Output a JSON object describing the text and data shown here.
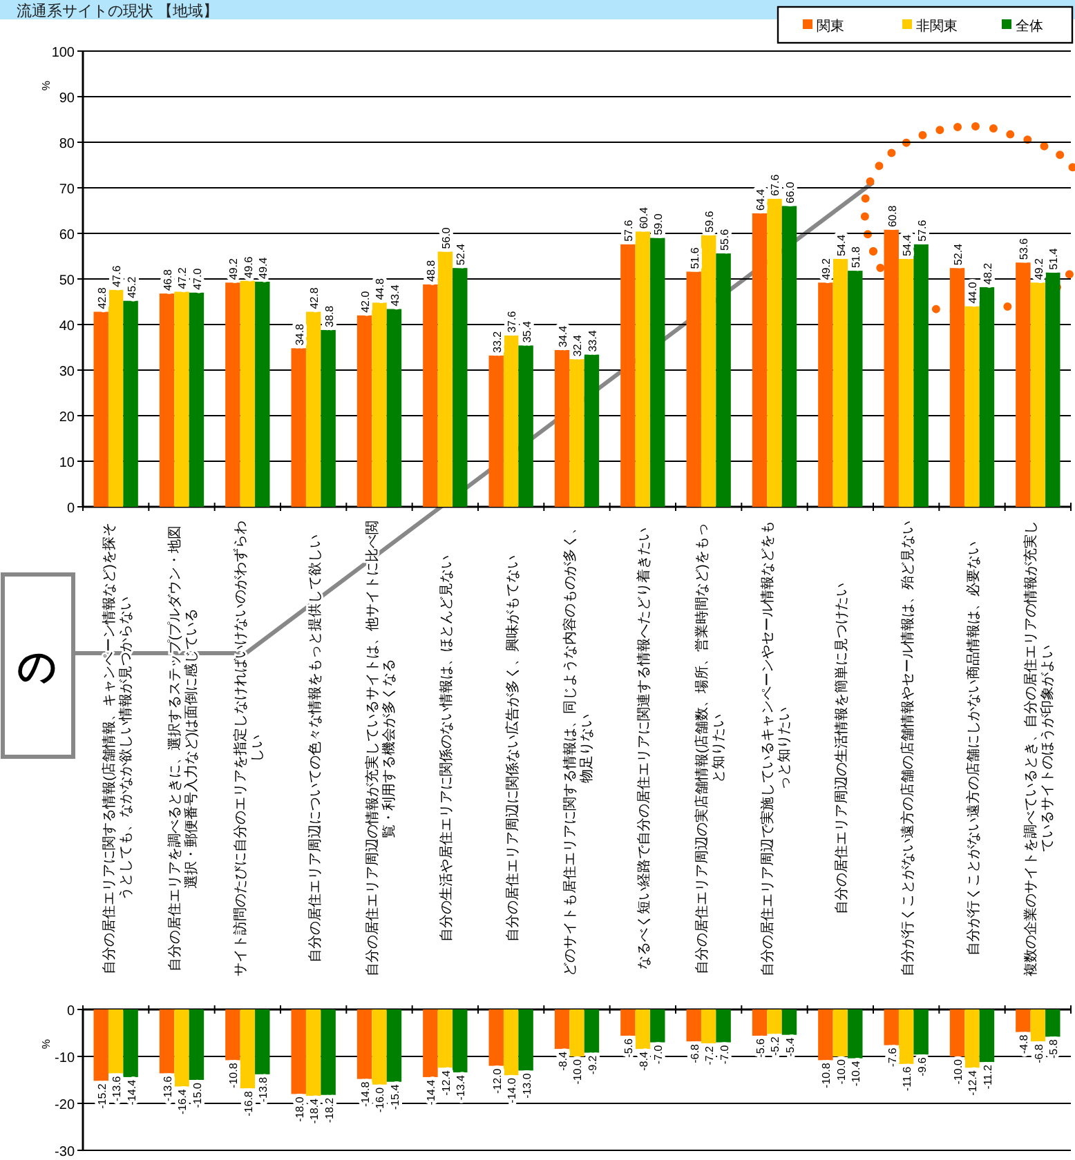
{
  "chart_data": [
    {
      "type": "bar",
      "title": "流通系サイトの現状 【地域】",
      "ylabel": "%",
      "ylim": [
        0,
        100
      ],
      "yticks": [
        0,
        10,
        20,
        30,
        40,
        50,
        60,
        70,
        80,
        90,
        100
      ],
      "grid": "y",
      "legend": "top right",
      "categories": [
        "自分の居住エリアに関する情報(店舗情報、キャンペーン情報など)を探そうとしても、なかなか欲しい情報が見つからない",
        "自分の居住エリアを調べるときに、選択するステップ(プルダウン・地図選択・郵便番号入力など)は面倒に感じている",
        "サイト訪問のたびに自分のエリアを指定しなければいけないのがわずらわしい",
        "自分の居住エリア周辺についての色々な情報をもっと提供して欲しい",
        "自分の居住エリア周辺の情報が充実しているサイトは、他サイトに比べ閲覧・利用する機会が多くなる",
        "自分の生活や居住エリアに関係のない情報は、ほとんど見ない",
        "自分の居住エリア周辺に関係ない広告が多く、興味がもてない",
        "どのサイトも居住エリアに関する情報は、同じような内容のものが多く、物足りない",
        "なるべく短い経路で自分の居住エリアに関連する情報へたどり着きたい",
        "自分の居住エリア周辺の実店舗情報(店舗数、場所、営業時間など)をもっと知りたい",
        "自分の居住エリア周辺で実施しているキャンペーンやセール情報などをもっと知りたい",
        "自分の居住エリア周辺の生活情報を簡単に見つけたい",
        "自分が行くことがない遠方の店舗の店舗情報やセール情報は、殆ど見ない",
        "自分が行くことがない遠方の店舗にしかない商品情報は、必要ない",
        "複数の企業のサイトを調べているとき、自分の居住エリアの情報が充実しているサイトのほうが印象がよい"
      ],
      "series": [
        {
          "name": "関東",
          "color": "#ff6600",
          "values": [
            42.8,
            46.8,
            49.2,
            34.8,
            42.0,
            48.8,
            33.2,
            34.4,
            57.6,
            51.6,
            64.4,
            49.2,
            60.8,
            52.4,
            53.6
          ],
          "value_labels": [
            "42.8",
            "46.8",
            "49.2",
            "34.8",
            "42.0",
            "48.8",
            "33.2",
            "34.4",
            "57.6",
            "51.6",
            "64.4",
            "49.2",
            "60.8",
            "52.4",
            "53.6"
          ]
        },
        {
          "name": "非関東",
          "color": "#ffcc00",
          "values": [
            47.6,
            47.2,
            49.6,
            42.8,
            44.8,
            56.0,
            37.6,
            32.4,
            60.4,
            59.6,
            67.6,
            54.4,
            54.4,
            44.0,
            49.2
          ],
          "value_labels": [
            "47.6",
            "47.2",
            "49.6",
            "42.8",
            "44.8",
            "56.0",
            "37.6",
            "32.4",
            "60.4",
            "59.6",
            "67.6",
            "54.4",
            "54.4",
            "44.0",
            "49.2"
          ]
        },
        {
          "name": "全体",
          "color": "#008000",
          "values": [
            45.2,
            47.0,
            49.4,
            38.8,
            43.4,
            52.4,
            35.4,
            33.4,
            59.0,
            55.6,
            66.0,
            51.8,
            57.6,
            48.2,
            51.4
          ],
          "value_labels": [
            "45.2",
            "47.0",
            "49.4",
            "38.8",
            "43.4",
            "52.4",
            "35.4",
            "33.4",
            "59.0",
            "55.6",
            "66.0",
            "51.8",
            "57.6",
            "48.2",
            "51.4"
          ]
        }
      ],
      "annotations": [
        "の"
      ]
    },
    {
      "type": "bar",
      "ylabel": "%",
      "ylim": [
        -30,
        0
      ],
      "yticks": [
        0,
        -10,
        -20,
        -30
      ],
      "grid": "y",
      "tick_labels": "y",
      "categories": [
        null,
        null,
        null,
        null,
        null,
        null,
        null,
        null,
        null,
        null,
        null,
        null,
        null,
        null,
        null
      ],
      "series": [
        {
          "color": "#ff6600",
          "values": [
            -15.2,
            -13.6,
            -10.8,
            -18.0,
            -14.8,
            -14.4,
            -12.0,
            -8.4,
            -5.6,
            -6.8,
            -5.6,
            -10.8,
            -7.6,
            -10.0,
            -4.8
          ],
          "value_labels": [
            "-15.2",
            "-13.6",
            "-10.8",
            "-18.0",
            "-14.8",
            "-14.4",
            "-12.0",
            "-8.4",
            "-5.6",
            "-6.8",
            "-5.6",
            "-10.8",
            "-7.6",
            "-10.0",
            "-4.8"
          ]
        },
        {
          "color": "#ffcc00",
          "values": [
            -13.6,
            -16.4,
            -16.8,
            -18.4,
            -16.0,
            -12.4,
            -14.0,
            -10.0,
            -8.4,
            -7.2,
            -5.2,
            -10.0,
            -11.6,
            -12.4,
            -6.8
          ],
          "value_labels": [
            "-13.6",
            "-16.4",
            "-16.8",
            "-18.4",
            "-16.0",
            "-12.4",
            "-14.0",
            "-10.0",
            "-8.4",
            "-7.2",
            "-5.2",
            "-10.0",
            "-11.6",
            "-12.4",
            "-6.8"
          ]
        },
        {
          "color": "#008000",
          "values": [
            -14.4,
            -15.0,
            -13.8,
            -18.2,
            -15.4,
            -13.4,
            -13.0,
            -9.2,
            -7.0,
            -7.0,
            -5.4,
            -10.4,
            -9.6,
            -11.2,
            -5.8
          ],
          "value_labels": [
            "-14.4",
            "-15.0",
            "-13.8",
            "-18.2",
            "-15.4",
            "-13.4",
            "-13.0",
            "-9.2",
            "-7.0",
            "-7.0",
            "-5.4",
            "-10.4",
            "-9.6",
            "-11.2",
            "-5.8"
          ]
        }
      ]
    }
  ]
}
